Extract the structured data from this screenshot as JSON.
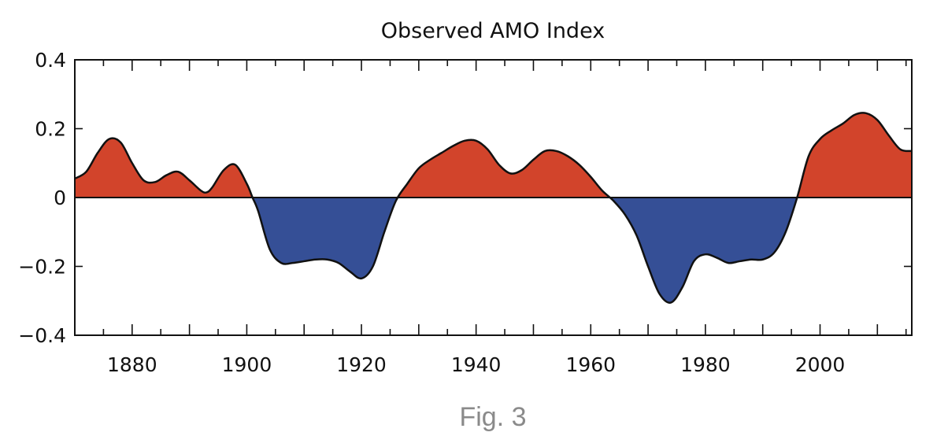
{
  "chart_data": {
    "type": "area",
    "title": "Observed AMO Index",
    "xlabel": "",
    "ylabel": "",
    "xlim": [
      1870,
      2016
    ],
    "ylim": [
      -0.4,
      0.4
    ],
    "x_ticks": [
      1880,
      1900,
      1920,
      1940,
      1960,
      1980,
      2000
    ],
    "x_tick_labels": [
      "1880",
      "1900",
      "1920",
      "1940",
      "1960",
      "1980",
      "2000"
    ],
    "y_ticks": [
      -0.4,
      -0.2,
      0,
      0.2,
      0.4
    ],
    "y_tick_labels": [
      "−0.4",
      "−0.2",
      "0",
      "0.2",
      "0.4"
    ],
    "grid": false,
    "legend": "none",
    "colors": {
      "positive": "#d2442b",
      "negative": "#354f96",
      "line": "#111111"
    },
    "series": [
      {
        "x": [
          1870,
          1872,
          1874,
          1876,
          1878,
          1880,
          1882,
          1884,
          1886,
          1888,
          1890,
          1892,
          1893,
          1894,
          1896,
          1898,
          1900,
          1901,
          1902,
          1904,
          1906,
          1908,
          1910,
          1912,
          1914,
          1916,
          1918,
          1920,
          1922,
          1924,
          1926,
          1928,
          1930,
          1932,
          1934,
          1936,
          1938,
          1940,
          1942,
          1944,
          1946,
          1948,
          1950,
          1952,
          1954,
          1956,
          1958,
          1960,
          1962,
          1964,
          1966,
          1968,
          1970,
          1972,
          1974,
          1976,
          1978,
          1980,
          1982,
          1984,
          1986,
          1988,
          1990,
          1992,
          1994,
          1996,
          1998,
          2000,
          2002,
          2004,
          2006,
          2008,
          2010,
          2012,
          2014,
          2016
        ],
        "values": [
          0.055,
          0.075,
          0.13,
          0.17,
          0.16,
          0.1,
          0.05,
          0.045,
          0.065,
          0.075,
          0.05,
          0.02,
          0.015,
          0.03,
          0.08,
          0.095,
          0.04,
          0.0,
          -0.04,
          -0.15,
          -0.19,
          -0.19,
          -0.185,
          -0.18,
          -0.18,
          -0.19,
          -0.215,
          -0.235,
          -0.2,
          -0.1,
          -0.01,
          0.04,
          0.085,
          0.11,
          0.13,
          0.15,
          0.165,
          0.165,
          0.14,
          0.095,
          0.07,
          0.08,
          0.11,
          0.135,
          0.135,
          0.12,
          0.095,
          0.06,
          0.02,
          -0.01,
          -0.05,
          -0.11,
          -0.2,
          -0.28,
          -0.305,
          -0.26,
          -0.185,
          -0.165,
          -0.175,
          -0.19,
          -0.185,
          -0.18,
          -0.18,
          -0.16,
          -0.1,
          0.0,
          0.12,
          0.17,
          0.195,
          0.215,
          0.24,
          0.245,
          0.225,
          0.18,
          0.14,
          0.135
        ]
      }
    ]
  },
  "caption": "Fig. 3"
}
